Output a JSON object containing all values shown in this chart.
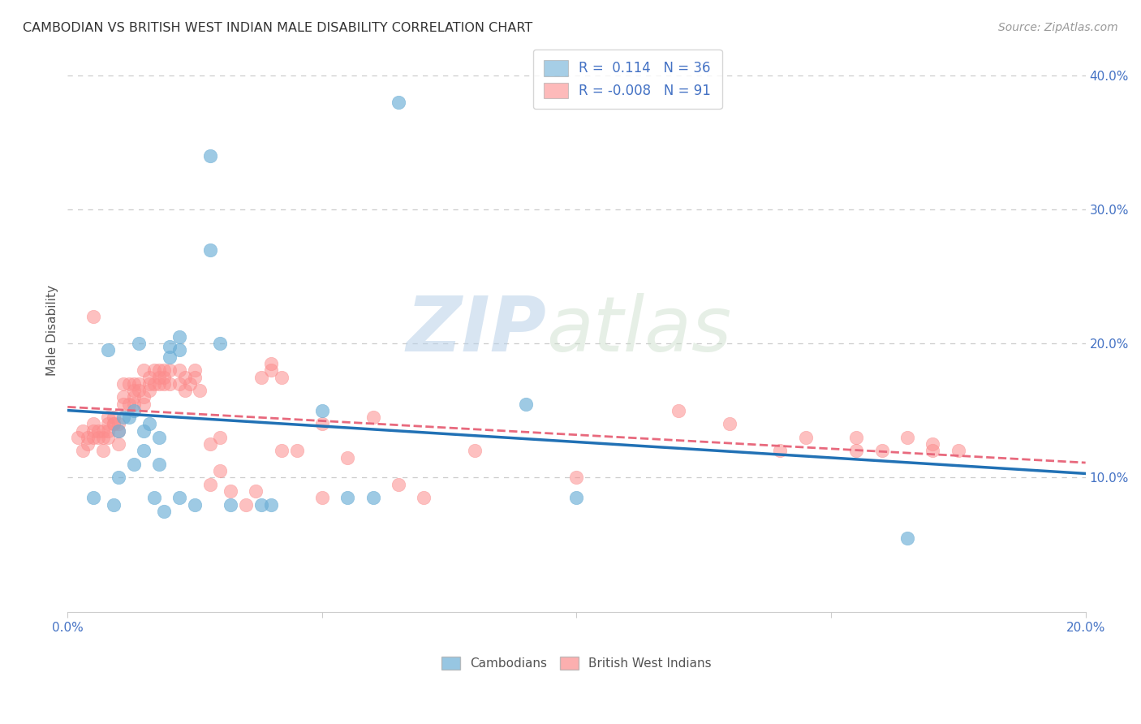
{
  "title": "CAMBODIAN VS BRITISH WEST INDIAN MALE DISABILITY CORRELATION CHART",
  "source": "Source: ZipAtlas.com",
  "ylabel": "Male Disability",
  "xlim": [
    0.0,
    0.2
  ],
  "ylim": [
    0.0,
    0.42
  ],
  "xticks": [
    0.0,
    0.05,
    0.1,
    0.15,
    0.2
  ],
  "yticks": [
    0.1,
    0.2,
    0.3,
    0.4
  ],
  "ytick_labels": [
    "10.0%",
    "20.0%",
    "30.0%",
    "40.0%"
  ],
  "xtick_labels": [
    "0.0%",
    "",
    "",
    "",
    "20.0%"
  ],
  "cambodian_color": "#6baed6",
  "bwi_color": "#fc8d8d",
  "cambodian_line_color": "#2171b5",
  "bwi_line_color": "#e8697d",
  "cambodian_R": 0.114,
  "cambodian_N": 36,
  "bwi_R": -0.008,
  "bwi_N": 91,
  "watermark_zip": "ZIP",
  "watermark_atlas": "atlas",
  "background_color": "#ffffff",
  "grid_color": "#cccccc",
  "cambodian_x": [
    0.005,
    0.008,
    0.01,
    0.01,
    0.012,
    0.013,
    0.013,
    0.014,
    0.015,
    0.015,
    0.016,
    0.017,
    0.018,
    0.018,
    0.02,
    0.02,
    0.022,
    0.022,
    0.022,
    0.025,
    0.028,
    0.028,
    0.03,
    0.032,
    0.038,
    0.04,
    0.055,
    0.06,
    0.065,
    0.09,
    0.1,
    0.165,
    0.009,
    0.011,
    0.019,
    0.05
  ],
  "cambodian_y": [
    0.085,
    0.195,
    0.135,
    0.1,
    0.145,
    0.15,
    0.11,
    0.2,
    0.135,
    0.12,
    0.14,
    0.085,
    0.11,
    0.13,
    0.198,
    0.19,
    0.205,
    0.195,
    0.085,
    0.08,
    0.27,
    0.34,
    0.2,
    0.08,
    0.08,
    0.08,
    0.085,
    0.085,
    0.38,
    0.155,
    0.085,
    0.055,
    0.08,
    0.145,
    0.075,
    0.15
  ],
  "bwi_x": [
    0.002,
    0.003,
    0.003,
    0.004,
    0.004,
    0.005,
    0.005,
    0.005,
    0.005,
    0.006,
    0.006,
    0.007,
    0.007,
    0.007,
    0.008,
    0.008,
    0.008,
    0.008,
    0.009,
    0.009,
    0.009,
    0.01,
    0.01,
    0.01,
    0.011,
    0.011,
    0.011,
    0.012,
    0.012,
    0.013,
    0.013,
    0.013,
    0.013,
    0.014,
    0.014,
    0.015,
    0.015,
    0.015,
    0.016,
    0.016,
    0.016,
    0.017,
    0.017,
    0.018,
    0.018,
    0.018,
    0.019,
    0.019,
    0.019,
    0.02,
    0.02,
    0.022,
    0.022,
    0.023,
    0.023,
    0.024,
    0.025,
    0.025,
    0.026,
    0.028,
    0.028,
    0.03,
    0.03,
    0.032,
    0.035,
    0.037,
    0.038,
    0.04,
    0.04,
    0.042,
    0.042,
    0.045,
    0.05,
    0.05,
    0.055,
    0.06,
    0.065,
    0.07,
    0.08,
    0.1,
    0.12,
    0.13,
    0.14,
    0.145,
    0.155,
    0.155,
    0.16,
    0.165,
    0.17,
    0.17,
    0.175
  ],
  "bwi_y": [
    0.13,
    0.135,
    0.12,
    0.13,
    0.125,
    0.22,
    0.14,
    0.135,
    0.13,
    0.13,
    0.135,
    0.135,
    0.13,
    0.12,
    0.14,
    0.145,
    0.135,
    0.13,
    0.14,
    0.145,
    0.14,
    0.14,
    0.135,
    0.125,
    0.16,
    0.17,
    0.155,
    0.155,
    0.17,
    0.16,
    0.165,
    0.155,
    0.17,
    0.17,
    0.165,
    0.18,
    0.16,
    0.155,
    0.17,
    0.165,
    0.175,
    0.18,
    0.17,
    0.175,
    0.17,
    0.18,
    0.175,
    0.18,
    0.17,
    0.18,
    0.17,
    0.17,
    0.18,
    0.165,
    0.175,
    0.17,
    0.18,
    0.175,
    0.165,
    0.125,
    0.095,
    0.105,
    0.13,
    0.09,
    0.08,
    0.09,
    0.175,
    0.18,
    0.185,
    0.175,
    0.12,
    0.12,
    0.085,
    0.14,
    0.115,
    0.145,
    0.095,
    0.085,
    0.12,
    0.1,
    0.15,
    0.14,
    0.12,
    0.13,
    0.12,
    0.13,
    0.12,
    0.13,
    0.12,
    0.125,
    0.12
  ]
}
